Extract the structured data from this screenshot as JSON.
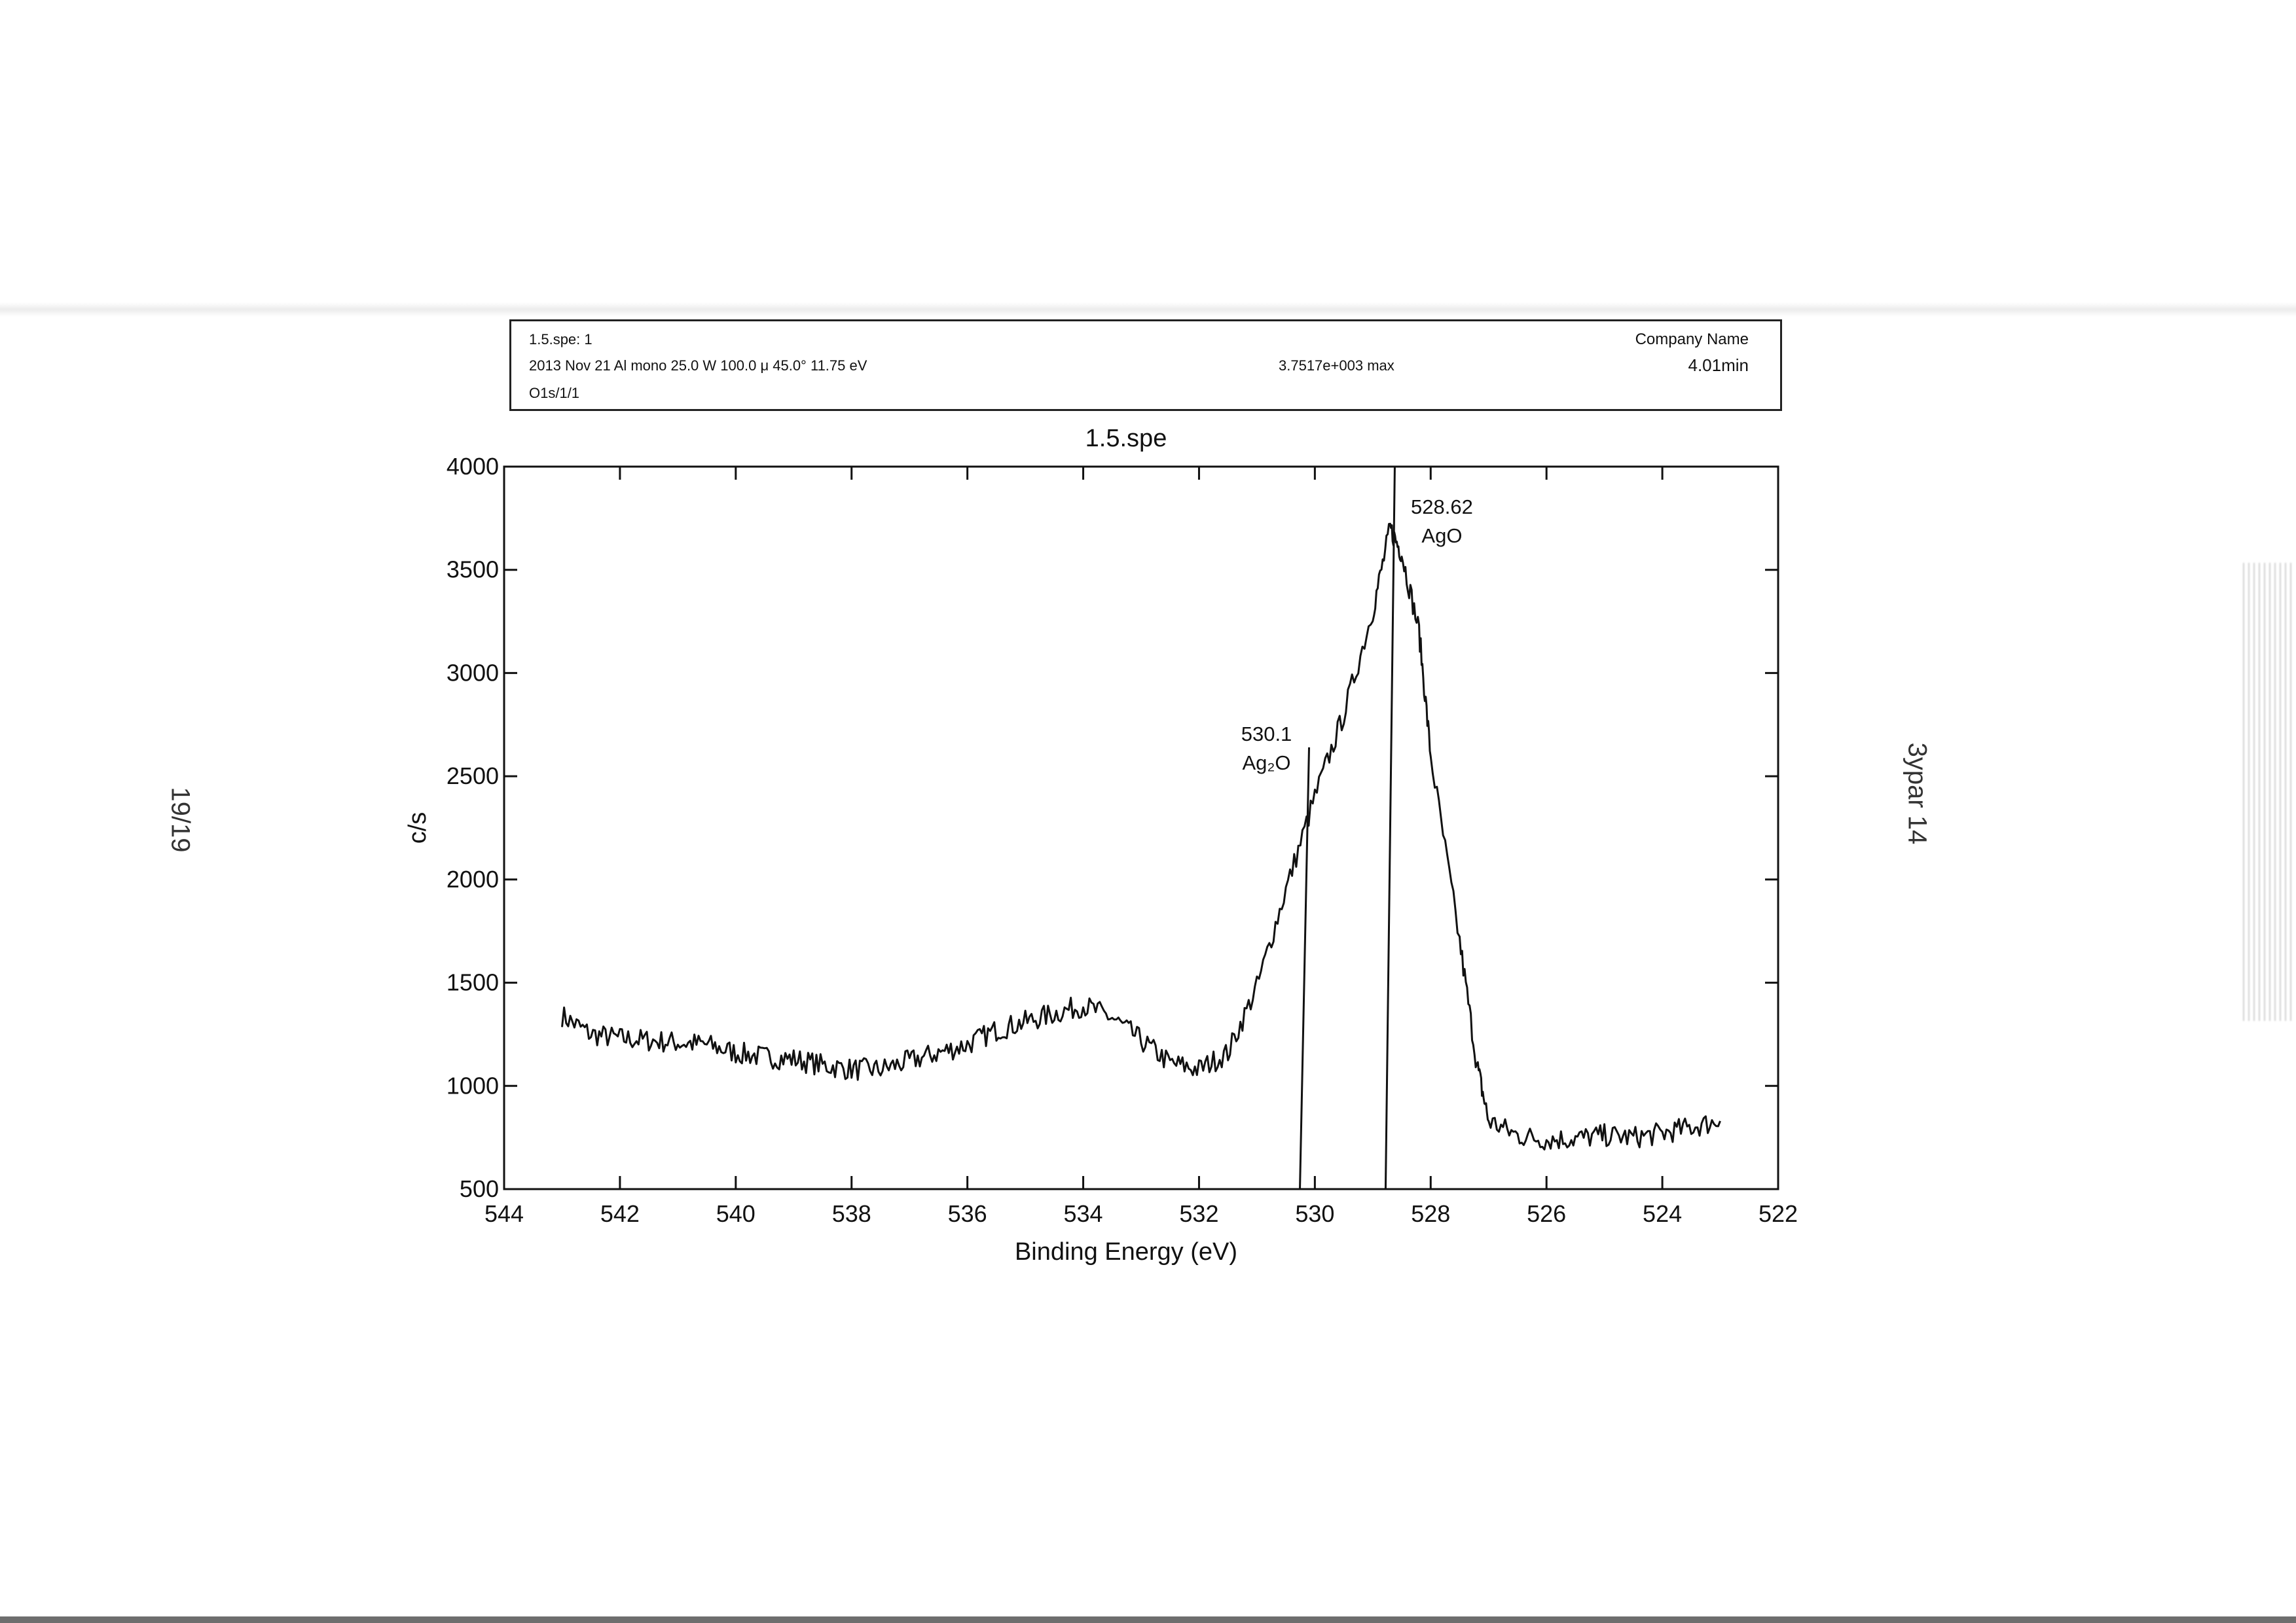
{
  "page": {
    "page_number": "19/19",
    "side_label": "3ypar 14"
  },
  "header": {
    "file_line": "1.5.spe: 1",
    "params_line": "2013 Nov 21  Al mono 25.0 W  100.0 μ  45.0°  11.75 eV",
    "max_counts": "3.7517e+003 max",
    "company": "Company Name",
    "acq_time": "4.01min",
    "region": "O1s/1/1"
  },
  "chart_data": {
    "type": "line",
    "title": "1.5.spe",
    "xlabel": "Binding Energy (eV)",
    "ylabel": "c/s",
    "xlim": [
      544,
      522
    ],
    "ylim": [
      500,
      4000
    ],
    "x_reversed": true,
    "xticks": [
      "544",
      "542",
      "540",
      "538",
      "536",
      "534",
      "532",
      "530",
      "528",
      "526",
      "524",
      "522"
    ],
    "yticks": [
      "500",
      "1000",
      "1500",
      "2000",
      "2500",
      "3000",
      "3500",
      "4000"
    ],
    "grid": false,
    "series": [
      {
        "x": [
          543.0,
          542.5,
          542.0,
          541.5,
          541.0,
          540.5,
          540.0,
          539.5,
          539.0,
          538.5,
          538.0,
          537.5,
          537.0,
          536.5,
          536.0,
          535.5,
          535.0,
          534.5,
          534.0,
          533.5,
          533.0,
          532.5,
          532.0,
          531.5,
          531.0,
          530.5,
          530.0,
          529.5,
          529.0,
          528.7,
          528.5,
          528.2,
          528.0,
          527.5,
          527.2,
          527.0,
          526.5,
          526.0,
          525.5,
          525.0,
          524.5,
          524.0,
          523.5,
          523.0
        ],
        "y": [
          1340,
          1250,
          1230,
          1220,
          1210,
          1200,
          1160,
          1140,
          1130,
          1100,
          1080,
          1080,
          1120,
          1160,
          1200,
          1270,
          1310,
          1350,
          1390,
          1330,
          1220,
          1110,
          1080,
          1160,
          1480,
          1950,
          2400,
          2800,
          3300,
          3700,
          3580,
          3200,
          2600,
          1700,
          1100,
          830,
          760,
          740,
          745,
          760,
          750,
          770,
          800,
          830
        ]
      }
    ],
    "annotations": [
      {
        "x": 530.1,
        "y_top": 2640,
        "y_bottom": 500,
        "line1": "530.1",
        "line2": "Ag₂O"
      },
      {
        "x": 528.62,
        "y_top": 4000,
        "y_bottom": 500,
        "line1": "528.62",
        "line2": "AgO"
      }
    ]
  }
}
